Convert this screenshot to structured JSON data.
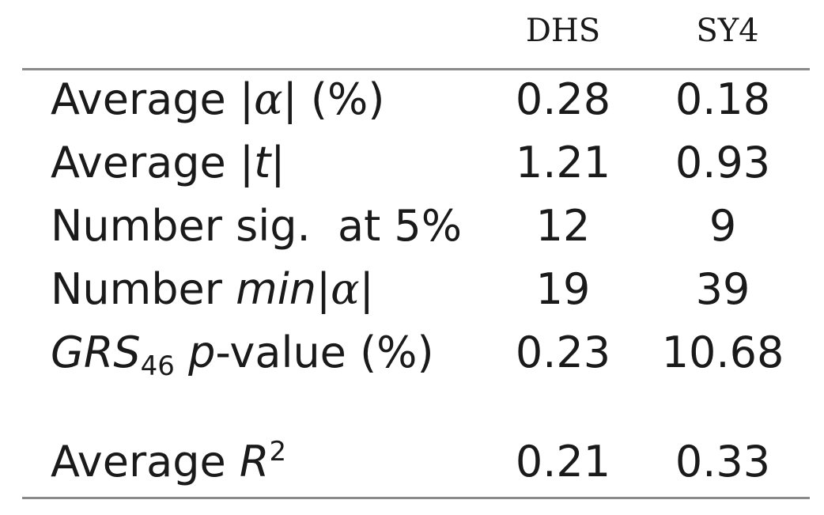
{
  "headers": {
    "col1": "DHS",
    "col2": "SY4"
  },
  "rows": [
    {
      "label_pre": "Average |",
      "label_greek": "α",
      "label_post": "| (%)",
      "col1": "0.28",
      "col2": "0.18"
    },
    {
      "label_pre": "Average |",
      "label_italic": "t",
      "label_post": "|",
      "col1": "1.21",
      "col2": "0.93"
    },
    {
      "label": "Number sig.  at 5%",
      "col1": "12",
      "col2": "9"
    },
    {
      "label_pre": "Number ",
      "label_italic": "min",
      "label_mid": "|",
      "label_greek": "α",
      "label_post": "|",
      "col1": "19",
      "col2": "39"
    },
    {
      "label_italic": "GRS",
      "label_sub": "46",
      "label_italic2": "p",
      "label_post": "-value (%)",
      "col1": "0.23",
      "col2": "10.68"
    },
    {
      "label_pre": "Average ",
      "label_italic": "R",
      "label_sup": "2",
      "col1": "0.21",
      "col2": "0.33"
    }
  ]
}
